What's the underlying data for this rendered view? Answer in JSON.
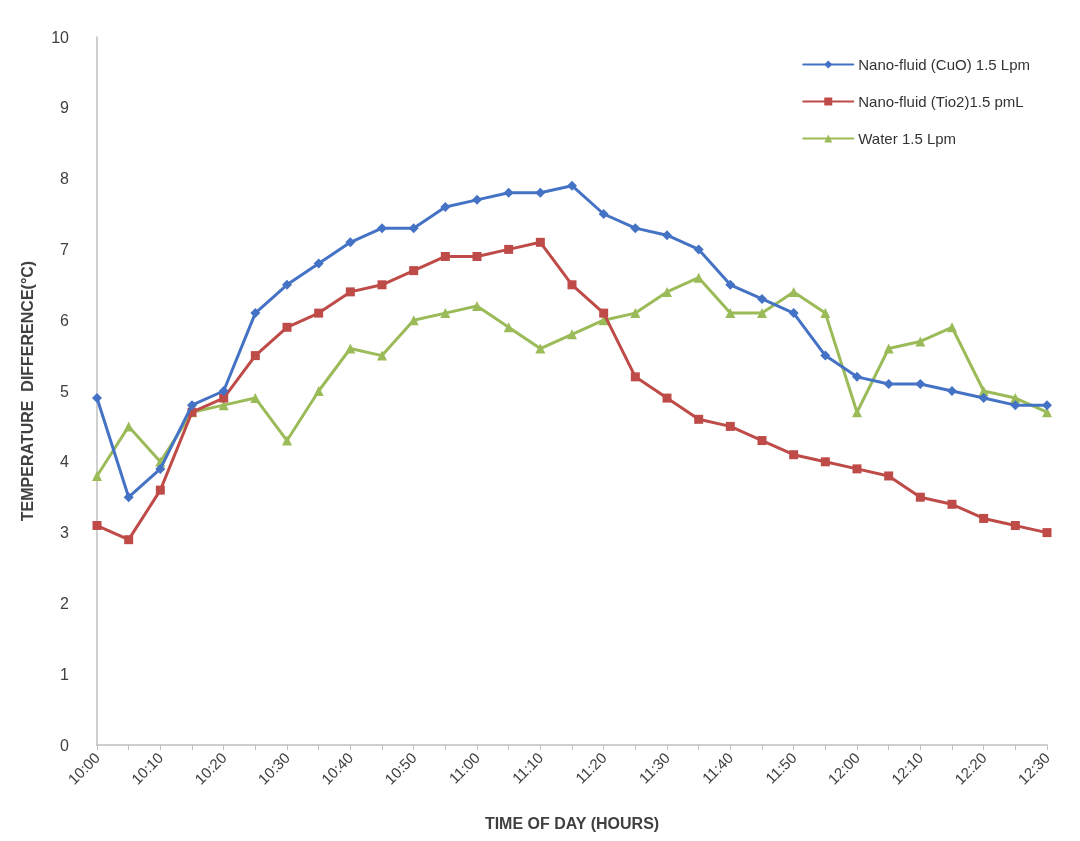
{
  "chart_data": {
    "type": "line",
    "xlabel": "TIME OF DAY (HOURS)",
    "ylabel": "TEMPERATURE  DIFFERENCE(°C)",
    "categories": [
      "10:00",
      null,
      "10:10",
      null,
      "10:20",
      null,
      "10:30",
      null,
      "10:40",
      null,
      "10:50",
      null,
      "11:00",
      null,
      "11:10",
      null,
      "11:20",
      null,
      "11:30",
      null,
      "11:40",
      null,
      "11:50",
      null,
      "12:00",
      null,
      "12:10",
      null,
      "12:20",
      null,
      "12:30"
    ],
    "series": [
      {
        "name": "Nano-fluid (CuO) 1.5 Lpm",
        "color": "#4472c4",
        "marker": "diamond",
        "values": [
          4.9,
          3.5,
          3.9,
          4.8,
          5.0,
          6.1,
          6.5,
          6.8,
          7.1,
          7.3,
          7.3,
          7.6,
          7.7,
          7.8,
          7.8,
          7.9,
          7.5,
          7.3,
          7.2,
          7.0,
          6.5,
          6.3,
          6.1,
          5.5,
          5.2,
          5.1,
          5.1,
          5.0,
          4.9,
          4.8,
          4.8
        ]
      },
      {
        "name": "Nano-fluid (Tio2)1.5 pmL",
        "color": "#be4b48",
        "marker": "square",
        "values": [
          3.1,
          2.9,
          3.6,
          4.7,
          4.9,
          5.5,
          5.9,
          6.1,
          6.4,
          6.5,
          6.7,
          6.9,
          6.9,
          7.0,
          7.1,
          6.5,
          6.1,
          5.2,
          4.9,
          4.6,
          4.5,
          4.3,
          4.1,
          4.0,
          3.9,
          3.8,
          3.5,
          3.4,
          3.2,
          3.1,
          3.0
        ]
      },
      {
        "name": "Water 1.5 Lpm",
        "color": "#9bbb59",
        "marker": "triangle",
        "values": [
          3.8,
          4.5,
          4.0,
          4.7,
          4.8,
          4.9,
          4.3,
          5.0,
          5.6,
          5.5,
          6.0,
          6.1,
          6.2,
          5.9,
          5.6,
          5.8,
          6.0,
          6.1,
          6.4,
          6.6,
          6.1,
          6.1,
          6.4,
          6.1,
          4.7,
          5.6,
          5.7,
          5.9,
          5.0,
          4.9,
          4.7
        ]
      }
    ],
    "ylim": [
      0,
      10
    ],
    "yticks": [
      0,
      1,
      2,
      3,
      4,
      5,
      6,
      7,
      8,
      9,
      10
    ],
    "grid": false,
    "legend": "top right",
    "line_style": "solid"
  }
}
